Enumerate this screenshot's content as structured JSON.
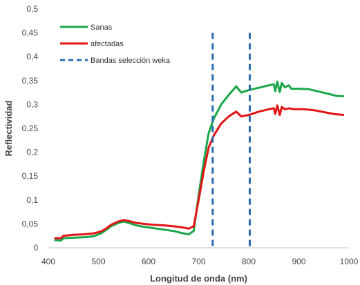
{
  "chart_data": {
    "type": "line",
    "xlabel": "Longitud de onda (nm)",
    "ylabel": "Reflectividad",
    "xlim": [
      400,
      1000
    ],
    "ylim": [
      0,
      0.5
    ],
    "x_ticks": [
      "400",
      "500",
      "600",
      "700",
      "800",
      "900",
      "1000"
    ],
    "y_ticks": [
      "0",
      "0,05",
      "0,1",
      "0,15",
      "0,2",
      "0,25",
      "0,3",
      "0,35",
      "0,4",
      "0,45",
      "0,5"
    ],
    "grid": false,
    "legend_position": "top-left",
    "series": [
      {
        "name": "Sanas",
        "color": "#1aa64a",
        "style": "solid",
        "points": [
          [
            412,
            0.016
          ],
          [
            425,
            0.015
          ],
          [
            430,
            0.02
          ],
          [
            450,
            0.021
          ],
          [
            470,
            0.022
          ],
          [
            490,
            0.024
          ],
          [
            505,
            0.03
          ],
          [
            515,
            0.037
          ],
          [
            525,
            0.045
          ],
          [
            540,
            0.052
          ],
          [
            550,
            0.055
          ],
          [
            560,
            0.052
          ],
          [
            575,
            0.047
          ],
          [
            590,
            0.044
          ],
          [
            610,
            0.041
          ],
          [
            630,
            0.038
          ],
          [
            650,
            0.035
          ],
          [
            665,
            0.031
          ],
          [
            680,
            0.028
          ],
          [
            690,
            0.035
          ],
          [
            700,
            0.11
          ],
          [
            710,
            0.18
          ],
          [
            720,
            0.24
          ],
          [
            730,
            0.27
          ],
          [
            745,
            0.3
          ],
          [
            760,
            0.32
          ],
          [
            775,
            0.338
          ],
          [
            785,
            0.325
          ],
          [
            800,
            0.33
          ],
          [
            820,
            0.335
          ],
          [
            840,
            0.34
          ],
          [
            850,
            0.342
          ],
          [
            853,
            0.328
          ],
          [
            857,
            0.348
          ],
          [
            862,
            0.326
          ],
          [
            866,
            0.345
          ],
          [
            872,
            0.336
          ],
          [
            880,
            0.34
          ],
          [
            885,
            0.333
          ],
          [
            900,
            0.333
          ],
          [
            920,
            0.332
          ],
          [
            940,
            0.327
          ],
          [
            960,
            0.322
          ],
          [
            975,
            0.318
          ],
          [
            990,
            0.317
          ]
        ]
      },
      {
        "name": "afectadas",
        "color": "#e41313",
        "style": "solid",
        "points": [
          [
            412,
            0.02
          ],
          [
            425,
            0.02
          ],
          [
            430,
            0.025
          ],
          [
            450,
            0.027
          ],
          [
            470,
            0.028
          ],
          [
            490,
            0.03
          ],
          [
            505,
            0.034
          ],
          [
            515,
            0.04
          ],
          [
            525,
            0.048
          ],
          [
            540,
            0.055
          ],
          [
            550,
            0.058
          ],
          [
            560,
            0.056
          ],
          [
            575,
            0.052
          ],
          [
            590,
            0.05
          ],
          [
            610,
            0.048
          ],
          [
            630,
            0.047
          ],
          [
            650,
            0.045
          ],
          [
            665,
            0.043
          ],
          [
            680,
            0.04
          ],
          [
            690,
            0.045
          ],
          [
            700,
            0.1
          ],
          [
            710,
            0.16
          ],
          [
            720,
            0.21
          ],
          [
            730,
            0.235
          ],
          [
            745,
            0.26
          ],
          [
            760,
            0.275
          ],
          [
            775,
            0.285
          ],
          [
            785,
            0.275
          ],
          [
            800,
            0.278
          ],
          [
            820,
            0.285
          ],
          [
            840,
            0.29
          ],
          [
            850,
            0.292
          ],
          [
            853,
            0.28
          ],
          [
            857,
            0.298
          ],
          [
            862,
            0.278
          ],
          [
            866,
            0.295
          ],
          [
            872,
            0.29
          ],
          [
            880,
            0.292
          ],
          [
            890,
            0.29
          ],
          [
            910,
            0.29
          ],
          [
            930,
            0.288
          ],
          [
            950,
            0.284
          ],
          [
            970,
            0.28
          ],
          [
            990,
            0.278
          ]
        ]
      },
      {
        "name": "Bandas selección weka",
        "color": "#2b6cb0",
        "style": "dashed",
        "vlines": [
          728,
          802
        ]
      }
    ]
  }
}
